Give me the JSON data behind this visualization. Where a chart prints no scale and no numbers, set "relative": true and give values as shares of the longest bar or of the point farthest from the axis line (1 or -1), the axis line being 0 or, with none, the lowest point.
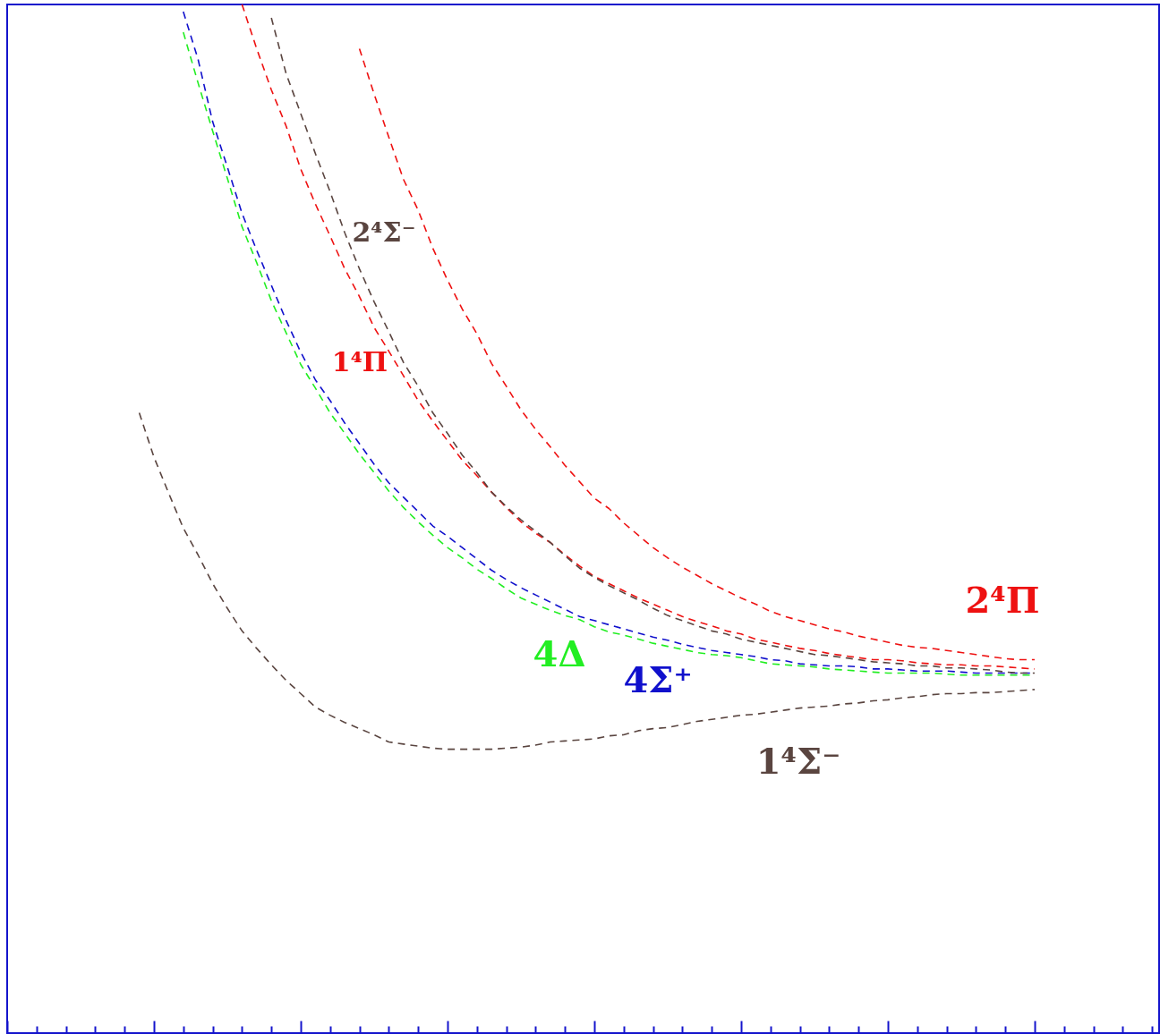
{
  "chart_data": {
    "type": "line",
    "relative": true,
    "line_style": "dashed",
    "categories": [
      null,
      null,
      null,
      null,
      null,
      null,
      null,
      null,
      null,
      null,
      null,
      null,
      null,
      null,
      null,
      null,
      null,
      null,
      null,
      null,
      null,
      null,
      null,
      null,
      null,
      null,
      null,
      null,
      null,
      null,
      null,
      null,
      null,
      null,
      null,
      null,
      null,
      null,
      null,
      null,
      null,
      null,
      null,
      null,
      null,
      null,
      null,
      null,
      null,
      null,
      null,
      null,
      null,
      null,
      null,
      null,
      null,
      null,
      null,
      null,
      null,
      null,
      null,
      null,
      null,
      null,
      null,
      null,
      null,
      null,
      null,
      null,
      null,
      null,
      null,
      null,
      null,
      null,
      null
    ],
    "series": [
      {
        "name": "1⁴Σ⁻",
        "color": "#5a4540",
        "values": [
          null,
          null,
          null,
          null,
          null,
          null,
          null,
          null,
          null,
          0.603,
          0.56,
          0.525,
          0.491,
          0.465,
          0.437,
          0.413,
          0.391,
          0.374,
          0.358,
          0.343,
          0.33,
          0.317,
          0.309,
          0.302,
          0.296,
          0.29,
          0.283,
          0.281,
          0.279,
          0.277,
          0.276,
          0.276,
          0.276,
          0.276,
          0.277,
          0.278,
          0.28,
          0.283,
          0.284,
          0.285,
          0.286,
          0.289,
          0.29,
          0.294,
          0.296,
          0.297,
          0.3,
          0.303,
          0.305,
          0.307,
          0.309,
          0.31,
          0.312,
          0.314,
          0.316,
          0.317,
          0.318,
          0.32,
          0.321,
          0.323,
          0.324,
          0.326,
          0.327,
          0.329,
          0.33,
          0.33,
          0.331,
          0.331,
          0.332,
          0.333,
          0.334,
          null,
          null,
          null,
          null,
          null,
          null,
          null,
          null
        ]
      },
      {
        "name": "4Δ",
        "color": "#22ee22",
        "values": [
          null,
          null,
          null,
          null,
          null,
          null,
          null,
          null,
          null,
          null,
          null,
          null,
          0.973,
          0.924,
          0.877,
          0.831,
          0.784,
          0.749,
          0.712,
          0.681,
          0.65,
          0.627,
          0.603,
          0.583,
          0.563,
          0.545,
          0.527,
          0.511,
          0.497,
          0.484,
          0.472,
          0.462,
          0.451,
          0.442,
          0.432,
          0.423,
          0.417,
          0.411,
          0.406,
          0.402,
          0.395,
          0.39,
          0.387,
          0.383,
          0.379,
          0.376,
          0.373,
          0.37,
          0.368,
          0.367,
          0.365,
          0.362,
          0.359,
          0.358,
          0.357,
          0.356,
          0.354,
          0.353,
          0.352,
          0.351,
          0.35,
          0.35,
          0.35,
          0.35,
          0.349,
          0.348,
          0.348,
          0.348,
          0.348,
          0.348,
          0.348,
          null,
          null,
          null,
          null,
          null,
          null,
          null,
          null
        ]
      },
      {
        "name": "4Σ⁺",
        "color": "#1010cc",
        "values": [
          null,
          null,
          null,
          null,
          null,
          null,
          null,
          null,
          null,
          null,
          null,
          null,
          0.993,
          0.947,
          0.886,
          0.842,
          0.797,
          0.761,
          0.727,
          0.693,
          0.662,
          0.635,
          0.615,
          0.593,
          0.573,
          0.553,
          0.535,
          0.521,
          0.507,
          0.493,
          0.483,
          0.472,
          0.461,
          0.45,
          0.441,
          0.433,
          0.426,
          0.419,
          0.412,
          0.405,
          0.401,
          0.397,
          0.393,
          0.389,
          0.385,
          0.382,
          0.378,
          0.375,
          0.372,
          0.37,
          0.368,
          0.366,
          0.363,
          0.362,
          0.359,
          0.358,
          0.357,
          0.357,
          0.356,
          0.354,
          0.354,
          0.353,
          0.352,
          0.352,
          0.352,
          0.351,
          0.35,
          0.35,
          0.35,
          0.35,
          0.35,
          null,
          null,
          null,
          null,
          null,
          null,
          null,
          null
        ]
      },
      {
        "name": "1⁴Π",
        "color": "#ee1111",
        "values": [
          null,
          null,
          null,
          null,
          null,
          null,
          null,
          null,
          null,
          null,
          null,
          null,
          null,
          null,
          null,
          null,
          1,
          0.957,
          0.917,
          0.882,
          0.84,
          0.806,
          0.775,
          0.743,
          0.716,
          0.686,
          0.663,
          0.639,
          0.615,
          0.595,
          0.576,
          0.557,
          0.542,
          0.526,
          0.511,
          0.497,
          0.486,
          0.477,
          0.465,
          0.454,
          0.444,
          0.437,
          0.43,
          0.423,
          0.417,
          0.411,
          0.405,
          0.4,
          0.396,
          0.391,
          0.388,
          0.383,
          0.38,
          0.377,
          0.374,
          0.372,
          0.369,
          0.367,
          0.365,
          0.363,
          0.363,
          0.362,
          0.36,
          0.359,
          0.358,
          0.358,
          0.357,
          0.357,
          0.356,
          0.355,
          0.354,
          null,
          null,
          null,
          null,
          null,
          null,
          null,
          null
        ]
      },
      {
        "name": "2⁴Σ⁻",
        "color": "#5a4540",
        "values": [
          null,
          null,
          null,
          null,
          null,
          null,
          null,
          null,
          null,
          null,
          null,
          null,
          null,
          null,
          null,
          null,
          null,
          null,
          0.987,
          0.933,
          0.894,
          0.855,
          0.818,
          0.778,
          0.743,
          0.711,
          0.682,
          0.652,
          0.629,
          0.603,
          0.583,
          0.562,
          0.545,
          0.526,
          0.512,
          0.499,
          0.488,
          0.477,
          0.464,
          0.452,
          0.443,
          0.435,
          0.428,
          0.421,
          0.413,
          0.406,
          0.401,
          0.396,
          0.391,
          0.388,
          0.383,
          0.38,
          0.377,
          0.374,
          0.371,
          0.368,
          0.367,
          0.365,
          0.363,
          0.361,
          0.36,
          0.359,
          0.357,
          0.357,
          0.355,
          0.355,
          0.354,
          0.353,
          0.351,
          0.35,
          0.35,
          null,
          null,
          null,
          null,
          null,
          null,
          null,
          null
        ]
      },
      {
        "name": "2⁴Π",
        "color": "#ee1111",
        "values": [
          null,
          null,
          null,
          null,
          null,
          null,
          null,
          null,
          null,
          null,
          null,
          null,
          null,
          null,
          null,
          null,
          null,
          null,
          null,
          null,
          null,
          null,
          null,
          null,
          0.957,
          0.913,
          0.871,
          0.83,
          0.8,
          0.763,
          0.732,
          0.704,
          0.68,
          0.651,
          0.629,
          0.606,
          0.587,
          0.57,
          0.552,
          0.536,
          0.52,
          0.51,
          0.496,
          0.484,
          0.472,
          0.462,
          0.453,
          0.445,
          0.437,
          0.43,
          0.423,
          0.417,
          0.41,
          0.405,
          0.401,
          0.397,
          0.393,
          0.39,
          0.386,
          0.383,
          0.38,
          0.377,
          0.375,
          0.374,
          0.372,
          0.37,
          0.368,
          0.366,
          0.364,
          0.363,
          0.363,
          null,
          null,
          null,
          null,
          null,
          null,
          null,
          null
        ]
      }
    ]
  }
}
